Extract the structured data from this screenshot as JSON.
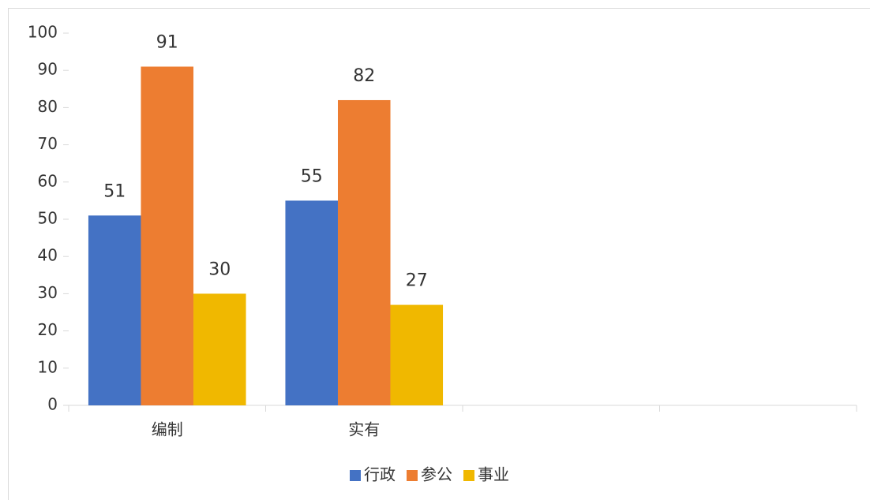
{
  "chart_data": {
    "type": "bar",
    "categories": [
      "编制",
      "实有",
      null,
      null
    ],
    "series": [
      {
        "name": "行政",
        "color": "#4472c4",
        "values": [
          51,
          55,
          null,
          null
        ]
      },
      {
        "name": "参公",
        "color": "#ed7d31",
        "values": [
          91,
          82,
          null,
          null
        ]
      },
      {
        "name": "事业",
        "color": "#f0b800",
        "values": [
          30,
          27,
          null,
          null
        ]
      }
    ],
    "ylim": [
      0,
      100
    ],
    "yticks": [
      0,
      10,
      20,
      30,
      40,
      50,
      60,
      70,
      80,
      90,
      100
    ],
    "grid": false,
    "legend": "bottom",
    "data_labels": true
  }
}
